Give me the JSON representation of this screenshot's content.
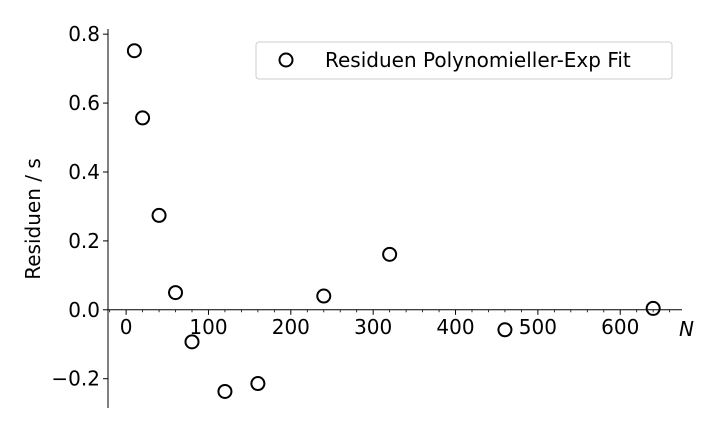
{
  "chart_data": {
    "type": "scatter",
    "ylabel": "Residuen / s",
    "xlabel": "N",
    "xlim": [
      -22,
      675
    ],
    "ylim": [
      -0.285,
      0.815
    ],
    "xticks": [
      0,
      100,
      200,
      300,
      400,
      500,
      600
    ],
    "yticks": [
      -0.2,
      0.0,
      0.2,
      0.4,
      0.6,
      0.8
    ],
    "xtick_labels": [
      "0",
      "100",
      "200",
      "300",
      "400",
      "500",
      "600"
    ],
    "ytick_labels": [
      "−0.2",
      "0.0",
      "0.2",
      "0.4",
      "0.6",
      "0.8"
    ],
    "grid": false,
    "legend_position": "top-right",
    "series": [
      {
        "name": "Residuen Polynomieller-Exp Fit",
        "marker": "open-circle",
        "color": "#000000",
        "x": [
          10,
          20,
          40,
          60,
          80,
          120,
          160,
          240,
          320,
          460,
          640
        ],
        "y": [
          0.752,
          0.557,
          0.274,
          0.05,
          -0.093,
          -0.237,
          -0.214,
          0.04,
          0.161,
          -0.058,
          0.004
        ]
      }
    ]
  }
}
